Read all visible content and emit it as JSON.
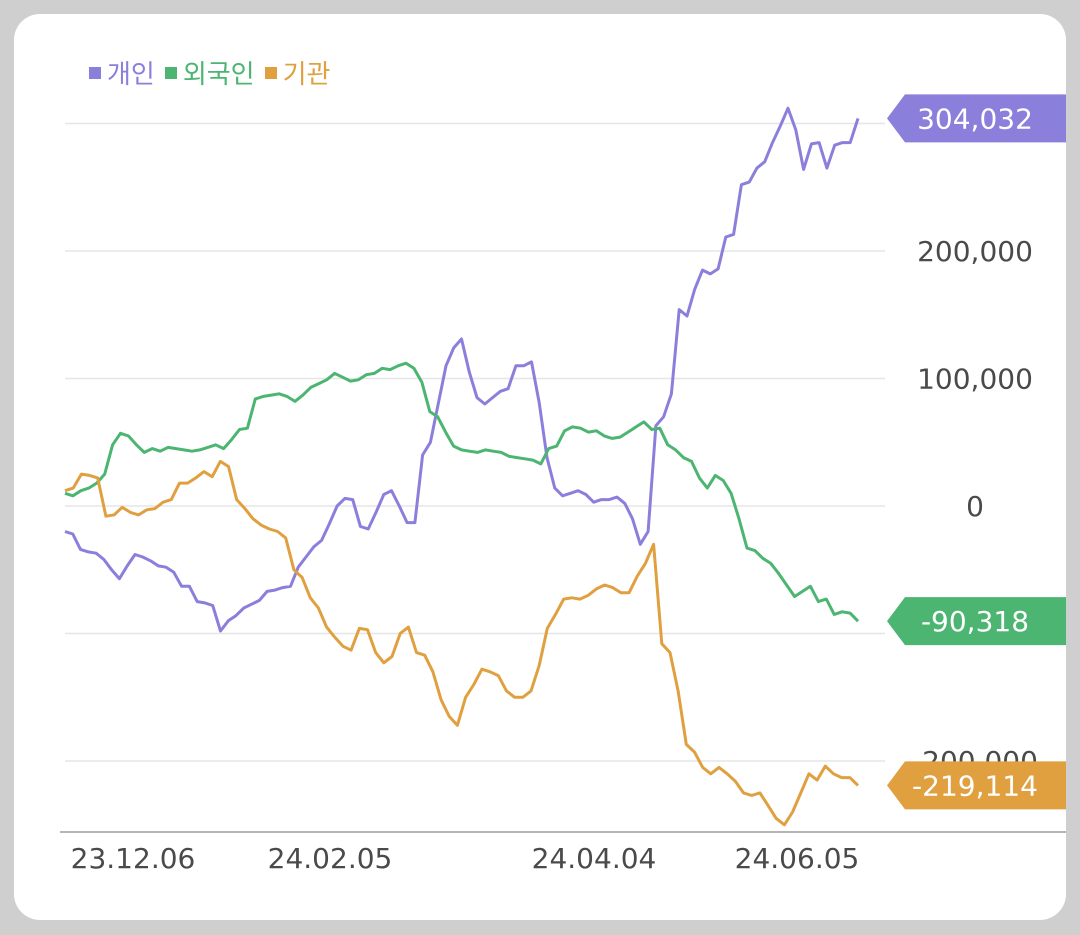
{
  "chart_data": {
    "type": "line",
    "legend_position": "top-left",
    "grid": true,
    "x_ticks": [
      "23.12.06",
      "24.02.05",
      "24.04.04",
      "24.06.05"
    ],
    "y_ticks": [
      {
        "value": 200000,
        "label": "200,000"
      },
      {
        "value": 100000,
        "label": "100,000"
      },
      {
        "value": 0,
        "label": "0"
      },
      {
        "value": -200000,
        "label": "-200,000"
      }
    ],
    "ylim": [
      -255000,
      320000
    ],
    "series": [
      {
        "name": "개인",
        "color": "#8b7fdc",
        "last_label": "304,032",
        "values": [
          -20000,
          -22000,
          -34000,
          -36000,
          -37000,
          -42000,
          -50000,
          -57000,
          -47000,
          -38000,
          -40000,
          -43000,
          -47000,
          -48000,
          -52000,
          -63000,
          -63000,
          -75000,
          -76000,
          -78000,
          -98000,
          -90000,
          -86000,
          -80000,
          -77000,
          -74000,
          -67000,
          -66000,
          -64000,
          -63000,
          -48000,
          -40000,
          -32000,
          -27000,
          -14000,
          0,
          6000,
          5000,
          -16000,
          -18000,
          -5000,
          9000,
          12000,
          0,
          -13000,
          -13000,
          40000,
          50000,
          80000,
          110000,
          124000,
          131000,
          105000,
          85000,
          80000,
          85000,
          90000,
          92000,
          110000,
          110000,
          113000,
          81000,
          38000,
          14000,
          8000,
          10000,
          12000,
          9000,
          3000,
          5000,
          5000,
          7000,
          2000,
          -10000,
          -30000,
          -20000,
          63000,
          70000,
          88000,
          154000,
          149000,
          170000,
          185000,
          182000,
          186000,
          211000,
          213000,
          252000,
          254000,
          265000,
          270000,
          285000,
          298000,
          312000,
          295000,
          264000,
          284000,
          285000,
          265000,
          283000,
          285000,
          285000,
          304032
        ]
      },
      {
        "name": "외국인",
        "color": "#4cb571",
        "last_label": "-90,318",
        "values": [
          10000,
          8000,
          12000,
          14000,
          18000,
          25000,
          48000,
          57000,
          55000,
          48000,
          42000,
          45000,
          43000,
          46000,
          45000,
          44000,
          43000,
          44000,
          46000,
          48000,
          45000,
          52000,
          60000,
          61000,
          84000,
          86000,
          87000,
          88000,
          86000,
          82000,
          87000,
          93000,
          96000,
          99000,
          104000,
          101000,
          98000,
          99000,
          103000,
          104000,
          108000,
          107000,
          110000,
          112000,
          108000,
          97000,
          74000,
          70000,
          58000,
          47000,
          44000,
          43000,
          42000,
          44000,
          43000,
          42000,
          39000,
          38000,
          37000,
          36000,
          33000,
          45000,
          47000,
          59000,
          62000,
          61000,
          58000,
          59000,
          55000,
          53000,
          54000,
          58000,
          62000,
          66000,
          60000,
          61000,
          48000,
          44000,
          38000,
          35000,
          22000,
          14000,
          24000,
          20000,
          10000,
          -10000,
          -33000,
          -35000,
          -41000,
          -45000,
          -53000,
          -62000,
          -71000,
          -67000,
          -63000,
          -75000,
          -73000,
          -85000,
          -83000,
          -84000,
          -90318
        ]
      },
      {
        "name": "기관",
        "color": "#e0a040",
        "last_label": "-219,114",
        "values": [
          12000,
          14000,
          25000,
          24000,
          22000,
          -8000,
          -7000,
          -1000,
          -5000,
          -7000,
          -3000,
          -2000,
          3000,
          5000,
          18000,
          18000,
          22000,
          27000,
          23000,
          35000,
          31000,
          5000,
          -2000,
          -10000,
          -15000,
          -18000,
          -20000,
          -25000,
          -50000,
          -56000,
          -72000,
          -80000,
          -95000,
          -103000,
          -110000,
          -113000,
          -96000,
          -97000,
          -115000,
          -123000,
          -118000,
          -100000,
          -95000,
          -115000,
          -117000,
          -130000,
          -152000,
          -165000,
          -172000,
          -150000,
          -140000,
          -128000,
          -130000,
          -133000,
          -145000,
          -150000,
          -150000,
          -145000,
          -125000,
          -96000,
          -85000,
          -73000,
          -72000,
          -73000,
          -70000,
          -65000,
          -62000,
          -64000,
          -68000,
          -68000,
          -55000,
          -45000,
          -30000,
          -108000,
          -115000,
          -145000,
          -187000,
          -193000,
          -205000,
          -210000,
          -205000,
          -210000,
          -216000,
          -225000,
          -227000,
          -225000,
          -235000,
          -245000,
          -250000,
          -240000,
          -225000,
          -210000,
          -215000,
          -204000,
          -210000,
          -213000,
          -213000,
          -219114
        ]
      }
    ]
  }
}
